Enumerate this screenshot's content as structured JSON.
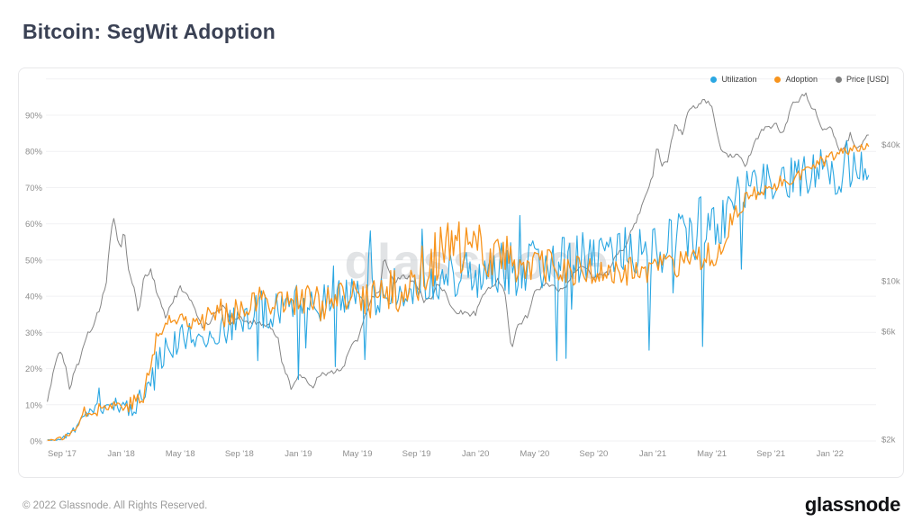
{
  "page": {
    "title": "Bitcoin: SegWit Adoption",
    "footer_copyright": "© 2022 Glassnode. All Rights Reserved.",
    "brand_logo_text": "glassnode"
  },
  "watermark_text": "glassnode",
  "colors": {
    "utilization": "#2BA7E2",
    "adoption": "#F7941D",
    "price": "#7e7e7e",
    "grid": "#f1f1f3",
    "axis_text": "#8e8e8e",
    "panel_border": "#e8e8ea",
    "watermark": "#c9cdd1",
    "title_text": "#3a4154"
  },
  "chart_data": {
    "type": "line",
    "title": "Bitcoin: SegWit Adoption",
    "grid": "horizontal",
    "legend_position": "top-right",
    "months_start": "Aug 2017",
    "months_total": 55.7,
    "samples_per_month": 8,
    "x_axis": {
      "ticks": [
        {
          "label": "Sep '17",
          "u": 1
        },
        {
          "label": "Jan '18",
          "u": 5
        },
        {
          "label": "May '18",
          "u": 9
        },
        {
          "label": "Sep '18",
          "u": 13
        },
        {
          "label": "Jan '19",
          "u": 17
        },
        {
          "label": "May '19",
          "u": 21
        },
        {
          "label": "Sep '19",
          "u": 25
        },
        {
          "label": "Jan '20",
          "u": 29
        },
        {
          "label": "May '20",
          "u": 33
        },
        {
          "label": "Sep '20",
          "u": 37
        },
        {
          "label": "Jan '21",
          "u": 41
        },
        {
          "label": "May '21",
          "u": 45
        },
        {
          "label": "Sep '21",
          "u": 49
        },
        {
          "label": "Jan '22",
          "u": 53
        }
      ]
    },
    "left_axis": {
      "unit": "%",
      "range": [
        0,
        100
      ],
      "grid_pct": [
        0,
        10,
        20,
        30,
        40,
        50,
        60,
        70,
        80,
        90,
        100
      ],
      "ticks": [
        {
          "label": "0%",
          "value": 0
        },
        {
          "label": "10%",
          "value": 10
        },
        {
          "label": "20%",
          "value": 20
        },
        {
          "label": "30%",
          "value": 30
        },
        {
          "label": "40%",
          "value": 40
        },
        {
          "label": "50%",
          "value": 50
        },
        {
          "label": "60%",
          "value": 60
        },
        {
          "label": "70%",
          "value": 70
        },
        {
          "label": "80%",
          "value": 80
        },
        {
          "label": "90%",
          "value": 90
        }
      ]
    },
    "right_axis": {
      "unit": "USD",
      "scale": "log",
      "ticks": [
        {
          "label": "$2k",
          "value": 2000
        },
        {
          "label": "$6k",
          "value": 6000
        },
        {
          "label": "$10k",
          "value": 10000
        },
        {
          "label": "$40k",
          "value": 40000
        }
      ]
    },
    "series": [
      {
        "name": "Utilization",
        "axis": "left",
        "color": "#2BA7E2",
        "seed": 11,
        "spike_prob": 0.04,
        "spike_min": 0.25,
        "spike_max": 0.6,
        "up_spike_prob": 0.012,
        "max_clamp": 83,
        "monthly_mean": [
          0.3,
          1.5,
          7,
          9,
          10,
          9.5,
          11,
          23,
          27,
          29,
          29,
          30,
          32,
          35,
          36,
          37,
          38,
          39,
          38,
          40,
          40,
          41,
          40,
          42,
          42,
          43,
          45,
          46,
          46,
          47,
          48,
          47,
          48,
          49,
          49,
          50,
          51,
          51,
          52,
          52,
          53,
          54,
          55,
          56,
          55,
          58,
          68,
          70,
          72,
          72,
          73,
          74,
          75,
          74,
          75,
          75
        ],
        "monthly_noise": [
          0.3,
          1,
          1.5,
          2,
          2,
          2.5,
          4,
          5,
          4,
          4,
          4,
          4,
          5,
          5,
          6,
          5,
          5,
          5,
          5,
          5,
          5,
          6,
          6,
          6,
          6,
          6,
          7,
          7,
          7,
          7,
          7,
          8,
          7,
          7,
          7,
          7,
          7,
          7,
          7,
          7,
          8,
          8,
          8,
          7,
          8,
          8,
          5,
          5,
          5,
          6,
          6,
          6,
          6,
          6,
          5,
          5
        ]
      },
      {
        "name": "Adoption",
        "axis": "left",
        "color": "#F7941D",
        "seed": 77,
        "spike_prob": 0,
        "spike_min": 0,
        "spike_max": 0,
        "up_spike_prob": 0,
        "max_clamp": 82.5,
        "monthly_mean": [
          0.3,
          1.5,
          8,
          9,
          10,
          10,
          12,
          30,
          33,
          35,
          34,
          35,
          36,
          38,
          39,
          39,
          39,
          39,
          38,
          38,
          39,
          40,
          40,
          41,
          42,
          48,
          52,
          53,
          52,
          53,
          52,
          50,
          49,
          48,
          47,
          47,
          47,
          46,
          46,
          47,
          47,
          48,
          48,
          49,
          50,
          53,
          63,
          67,
          69,
          71,
          73,
          75,
          77,
          79,
          81,
          82
        ],
        "monthly_noise": [
          0.3,
          1,
          1.5,
          2,
          2,
          2,
          3,
          4,
          4,
          4,
          4,
          4,
          4,
          4,
          4,
          4,
          4,
          5,
          5,
          5,
          6,
          7,
          7,
          7,
          7,
          8,
          8,
          8,
          8,
          8,
          8,
          7,
          6,
          6,
          5,
          5,
          4,
          4,
          4,
          4,
          4,
          4,
          4,
          4,
          4,
          4,
          3,
          2.5,
          2.5,
          2,
          2,
          2,
          2,
          1.5,
          1.5,
          1.5
        ]
      },
      {
        "name": "Price [USD]",
        "axis": "right",
        "color": "#7e7e7e",
        "seed": 5,
        "log_jitter": 0.011,
        "points_u": [
          0,
          0.5,
          0.85,
          1.2,
          1.5,
          1.8,
          2.2,
          2.6,
          3.0,
          3.5,
          4.0,
          4.3,
          4.5,
          4.8,
          5.0,
          5.2,
          5.5,
          5.9,
          6.2,
          6.5,
          7.0,
          7.5,
          8.0,
          8.5,
          9.0,
          9.5,
          10.0,
          10.5,
          11.0,
          11.5,
          12.0,
          12.5,
          13.0,
          13.5,
          14.0,
          14.5,
          15.0,
          15.6,
          15.9,
          16.2,
          16.5,
          17.0,
          17.5,
          18.0,
          18.5,
          19.0,
          19.5,
          20.0,
          20.6,
          21.0,
          21.5,
          22.0,
          22.5,
          22.8,
          23.2,
          23.5,
          24.0,
          24.5,
          25.0,
          25.5,
          26.0,
          26.3,
          26.8,
          27.0,
          27.5,
          28.0,
          28.5,
          29.0,
          29.5,
          30.0,
          30.5,
          31.0,
          31.45,
          31.8,
          32.5,
          33.0,
          33.5,
          34.0,
          34.5,
          35.0,
          35.7,
          36.2,
          36.5,
          37.0,
          37.5,
          38.0,
          38.5,
          39.0,
          39.5,
          40.0,
          40.5,
          41.0,
          41.3,
          41.6,
          42.0,
          42.5,
          43.0,
          43.5,
          44.0,
          44.5,
          45.0,
          45.4,
          45.7,
          46.0,
          46.5,
          47.0,
          47.3,
          47.8,
          48.0,
          48.5,
          49.0,
          49.3,
          49.7,
          50.0,
          50.5,
          51.0,
          51.3,
          51.8,
          52.0,
          52.5,
          53.0,
          53.3,
          53.6,
          54.0,
          54.4,
          54.7,
          55.0,
          55.4,
          55.7
        ],
        "points_usd": [
          2900,
          4300,
          4900,
          4300,
          3300,
          4000,
          4400,
          5700,
          6150,
          7400,
          9900,
          16600,
          19100,
          14300,
          14100,
          16900,
          11100,
          9100,
          7100,
          10200,
          11100,
          8600,
          7000,
          8100,
          9300,
          8500,
          7500,
          6300,
          6600,
          7400,
          7700,
          6400,
          7100,
          6500,
          6600,
          6450,
          6400,
          5600,
          4300,
          3900,
          3400,
          3800,
          3650,
          3450,
          3900,
          3850,
          4000,
          4100,
          5300,
          5400,
          7000,
          8550,
          9000,
          12900,
          10800,
          9800,
          10600,
          10300,
          9700,
          8200,
          8300,
          9500,
          9200,
          8800,
          7300,
          7250,
          7150,
          7200,
          8700,
          9350,
          10100,
          8700,
          4950,
          6300,
          7000,
          8800,
          9550,
          9650,
          9150,
          9200,
          11000,
          11800,
          11400,
          10300,
          10700,
          10800,
          12950,
          13800,
          16300,
          19200,
          23800,
          29000,
          40600,
          32100,
          33500,
          49100,
          45200,
          57400,
          58800,
          63500,
          57800,
          43200,
          36700,
          35600,
          35900,
          34700,
          31600,
          39900,
          41600,
          47100,
          47150,
          51000,
          43800,
          48200,
          61600,
          63300,
          67500,
          57100,
          57300,
          46700,
          47700,
          43100,
          36800,
          38700,
          44400,
          39300,
          39100,
          42500,
          45200
        ]
      }
    ]
  }
}
